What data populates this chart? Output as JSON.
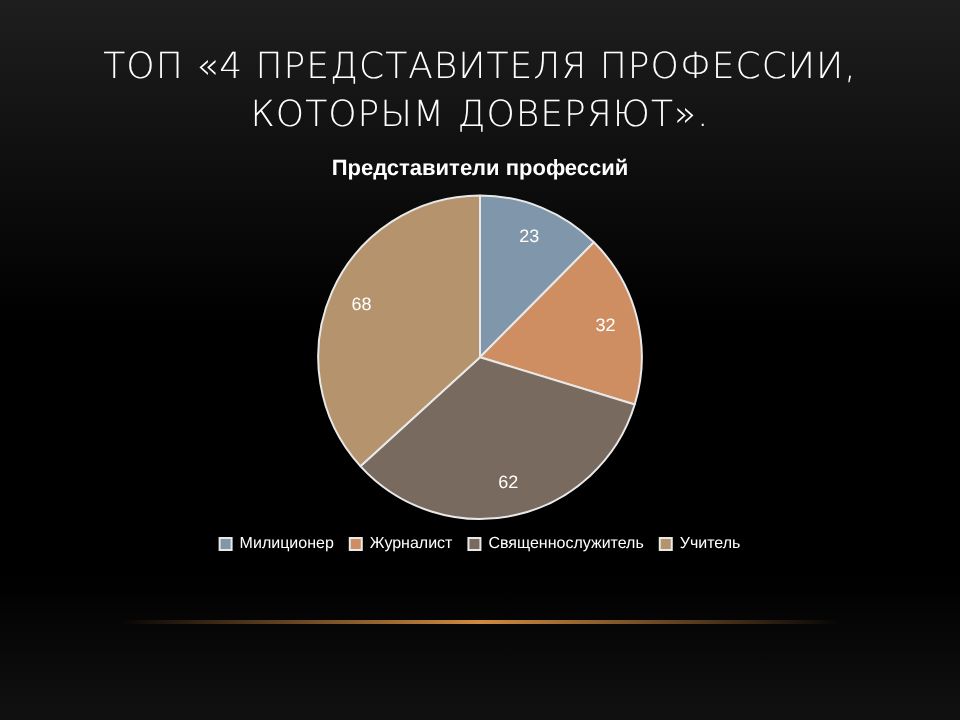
{
  "chart_data": {
    "type": "pie",
    "title": "ТОП «4 ПРЕДСТАВИТЕЛЯ ПРОФЕССИИ, КОТОРЫМ ДОВЕРЯЮТ».",
    "subtitle": "Представители профессий",
    "categories": [
      "Милиционер",
      "Журналист",
      "Священнослужитель",
      "Учитель"
    ],
    "values": [
      23,
      32,
      62,
      68
    ],
    "colors": [
      "#7f96ab",
      "#cf8e62",
      "#796a5f",
      "#b5946d"
    ],
    "data_labels": true,
    "legend": "bottom"
  }
}
